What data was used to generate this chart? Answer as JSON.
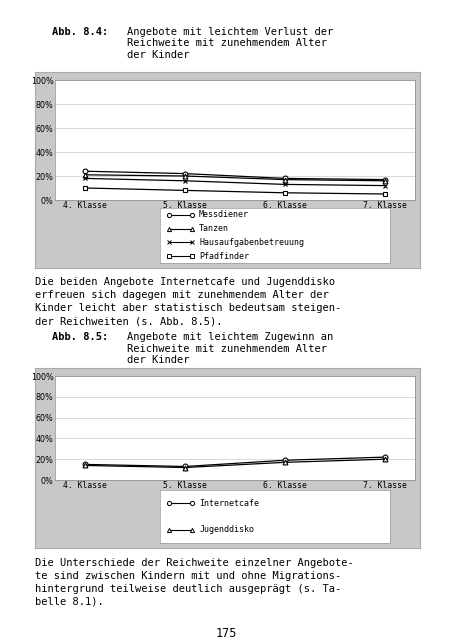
{
  "chart1": {
    "title_bold": "Abb. 8.4:",
    "title_rest_lines": [
      "Angebote mit leichtem Verlust der",
      "Reichweite mit zunehmendem Alter",
      "der Kinder"
    ],
    "x_labels": [
      "4. Klasse",
      "5. Klasse",
      "6. Klasse",
      "7. Klasse"
    ],
    "series": {
      "Messdiener": [
        24,
        22,
        18,
        17
      ],
      "Tanzen": [
        21,
        20,
        17,
        16
      ],
      "Hausaufgabenbetreuung": [
        18,
        16,
        13,
        12
      ],
      "Pfadfinder": [
        10,
        8,
        6,
        5
      ]
    },
    "markers": [
      "o",
      "^",
      "x",
      "s"
    ],
    "ylim": [
      0,
      100
    ],
    "yticks": [
      0,
      20,
      40,
      60,
      80,
      100
    ],
    "yticklabels": [
      "0%",
      "20%",
      "40%",
      "60%",
      "80%",
      "100%"
    ]
  },
  "chart2": {
    "title_bold": "Abb. 8.5:",
    "title_rest_lines": [
      "Angebote mit leichtem Zugewinn an",
      "Reichweite mit zunehmendem Alter",
      "der Kinder"
    ],
    "x_labels": [
      "4. Klasse",
      "5. Klasse",
      "6. Klasse",
      "7. Klasse"
    ],
    "series": {
      "Internetcafe": [
        15,
        13,
        19,
        22
      ],
      "Jugenddisko": [
        14,
        12,
        17,
        20
      ]
    },
    "markers": [
      "o",
      "^"
    ],
    "ylim": [
      0,
      100
    ],
    "yticks": [
      0,
      20,
      40,
      60,
      80,
      100
    ],
    "yticklabels": [
      "0%",
      "20%",
      "40%",
      "60%",
      "80%",
      "100%"
    ]
  },
  "text_between_lines": [
    "Die beiden Angebote Internetcafe und Jugenddisko",
    "erfreuen sich dagegen mit zunehmendem Alter der",
    "Kinder leicht aber statistisch bedeutsam steigen-",
    "der Reichweiten (s. Abb. 8.5)."
  ],
  "text_below_lines": [
    "Die Unterschiede der Reichweite einzelner Angebote-",
    "te sind zwischen Kindern mit und ohne Migrations-",
    "hintergrund teilweise deutlich ausgeprägt (s. Ta-",
    "belle 8.1)."
  ],
  "page_number": "175",
  "bg_outer": "#ffffff",
  "bg_chart_panel": "#c8c8c8",
  "bg_plot": "#ffffff",
  "bg_legend": "#ffffff",
  "line_color": "#000000",
  "grid_color": "#bbbbbb",
  "spine_color": "#888888"
}
